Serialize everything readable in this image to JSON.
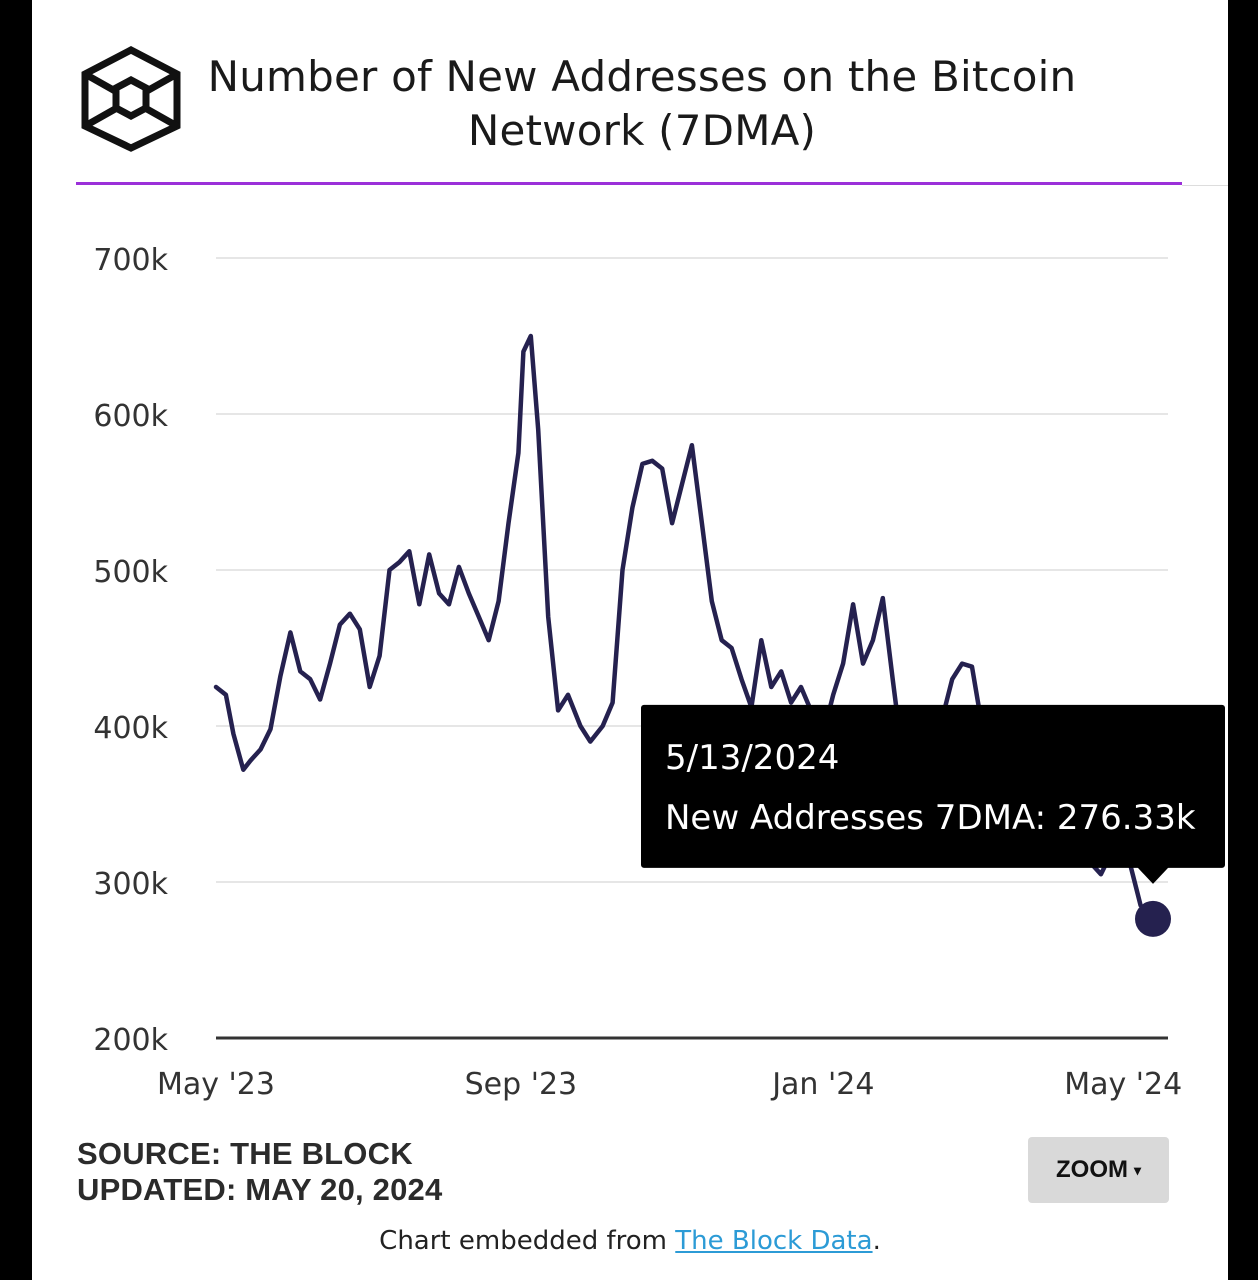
{
  "header": {
    "title": "Number of New Addresses on the Bitcoin Network (7DMA)"
  },
  "colors": {
    "accent_rule": "#9b30d9",
    "line": "#25214f",
    "grid": "#e6e6e6",
    "tooltip_bg": "#000000",
    "link": "#2c9bd6"
  },
  "chart_data": {
    "type": "line",
    "title": "Number of New Addresses on the Bitcoin Network (7DMA)",
    "xlabel": "",
    "ylabel": "",
    "ylim": [
      200000,
      700000
    ],
    "y_ticks": [
      {
        "value": 700000,
        "label": "700k"
      },
      {
        "value": 600000,
        "label": "600k"
      },
      {
        "value": 500000,
        "label": "500k"
      },
      {
        "value": 400000,
        "label": "400k"
      },
      {
        "value": 300000,
        "label": "300k"
      },
      {
        "value": 200000,
        "label": "200k"
      }
    ],
    "xlim": [
      "2023-05-01",
      "2024-05-13"
    ],
    "x_ticks": [
      {
        "value": "2023-05-01",
        "label": "May '23"
      },
      {
        "value": "2023-09-01",
        "label": "Sep '23"
      },
      {
        "value": "2024-01-01",
        "label": "Jan '24"
      },
      {
        "value": "2024-05-01",
        "label": "May '24"
      }
    ],
    "grid": true,
    "series": [
      {
        "name": "New Addresses 7DMA",
        "points": [
          [
            "2023-05-01",
            425000
          ],
          [
            "2023-05-05",
            420000
          ],
          [
            "2023-05-08",
            395000
          ],
          [
            "2023-05-12",
            372000
          ],
          [
            "2023-05-15",
            378000
          ],
          [
            "2023-05-19",
            385000
          ],
          [
            "2023-05-23",
            398000
          ],
          [
            "2023-05-27",
            432000
          ],
          [
            "2023-05-31",
            460000
          ],
          [
            "2023-06-04",
            435000
          ],
          [
            "2023-06-08",
            430000
          ],
          [
            "2023-06-12",
            417000
          ],
          [
            "2023-06-16",
            440000
          ],
          [
            "2023-06-20",
            465000
          ],
          [
            "2023-06-24",
            472000
          ],
          [
            "2023-06-28",
            462000
          ],
          [
            "2023-07-02",
            425000
          ],
          [
            "2023-07-06",
            445000
          ],
          [
            "2023-07-10",
            500000
          ],
          [
            "2023-07-14",
            505000
          ],
          [
            "2023-07-18",
            512000
          ],
          [
            "2023-07-22",
            478000
          ],
          [
            "2023-07-26",
            510000
          ],
          [
            "2023-07-30",
            485000
          ],
          [
            "2023-08-03",
            478000
          ],
          [
            "2023-08-07",
            502000
          ],
          [
            "2023-08-11",
            485000
          ],
          [
            "2023-08-15",
            470000
          ],
          [
            "2023-08-19",
            455000
          ],
          [
            "2023-08-23",
            480000
          ],
          [
            "2023-08-27",
            530000
          ],
          [
            "2023-08-31",
            575000
          ],
          [
            "2023-09-02",
            640000
          ],
          [
            "2023-09-05",
            650000
          ],
          [
            "2023-09-08",
            590000
          ],
          [
            "2023-09-12",
            470000
          ],
          [
            "2023-09-16",
            410000
          ],
          [
            "2023-09-20",
            420000
          ],
          [
            "2023-09-25",
            400000
          ],
          [
            "2023-09-29",
            390000
          ],
          [
            "2023-10-04",
            400000
          ],
          [
            "2023-10-08",
            415000
          ],
          [
            "2023-10-12",
            500000
          ],
          [
            "2023-10-16",
            540000
          ],
          [
            "2023-10-20",
            568000
          ],
          [
            "2023-10-24",
            570000
          ],
          [
            "2023-10-28",
            565000
          ],
          [
            "2023-11-01",
            530000
          ],
          [
            "2023-11-05",
            555000
          ],
          [
            "2023-11-09",
            580000
          ],
          [
            "2023-11-13",
            530000
          ],
          [
            "2023-11-17",
            480000
          ],
          [
            "2023-11-21",
            455000
          ],
          [
            "2023-11-25",
            450000
          ],
          [
            "2023-11-29",
            430000
          ],
          [
            "2023-12-03",
            412000
          ],
          [
            "2023-12-07",
            455000
          ],
          [
            "2023-12-11",
            425000
          ],
          [
            "2023-12-15",
            435000
          ],
          [
            "2023-12-19",
            415000
          ],
          [
            "2023-12-23",
            425000
          ],
          [
            "2023-12-27",
            410000
          ],
          [
            "2024-01-01",
            395000
          ],
          [
            "2024-01-05",
            420000
          ],
          [
            "2024-01-09",
            440000
          ],
          [
            "2024-01-13",
            478000
          ],
          [
            "2024-01-17",
            440000
          ],
          [
            "2024-01-21",
            455000
          ],
          [
            "2024-01-25",
            482000
          ],
          [
            "2024-01-29",
            430000
          ],
          [
            "2024-02-02",
            380000
          ],
          [
            "2024-02-06",
            360000
          ],
          [
            "2024-02-10",
            370000
          ],
          [
            "2024-02-14",
            395000
          ],
          [
            "2024-02-18",
            405000
          ],
          [
            "2024-02-22",
            430000
          ],
          [
            "2024-02-26",
            440000
          ],
          [
            "2024-03-01",
            438000
          ],
          [
            "2024-03-05",
            400000
          ],
          [
            "2024-03-09",
            370000
          ],
          [
            "2024-03-13",
            355000
          ],
          [
            "2024-03-17",
            350000
          ],
          [
            "2024-03-22",
            340000
          ],
          [
            "2024-03-27",
            345000
          ],
          [
            "2024-04-01",
            335000
          ],
          [
            "2024-04-05",
            335000
          ],
          [
            "2024-04-10",
            340000
          ],
          [
            "2024-04-14",
            325000
          ],
          [
            "2024-04-18",
            312000
          ],
          [
            "2024-04-22",
            305000
          ],
          [
            "2024-04-26",
            318000
          ],
          [
            "2024-04-30",
            320000
          ],
          [
            "2024-05-04",
            310000
          ],
          [
            "2024-05-08",
            285000
          ],
          [
            "2024-05-13",
            276330
          ]
        ]
      }
    ],
    "highlight": {
      "x": "2024-05-13",
      "y": 276330
    }
  },
  "tooltip": {
    "date": "5/13/2024",
    "label": "New Addresses 7DMA: 276.33k"
  },
  "footer": {
    "source": "SOURCE: THE BLOCK",
    "updated": "UPDATED: MAY 20, 2024",
    "zoom_label": "ZOOM",
    "zoom_caret": "▾",
    "embed_prefix": "Chart embedded from ",
    "embed_link": "The Block Data",
    "embed_suffix": "."
  }
}
